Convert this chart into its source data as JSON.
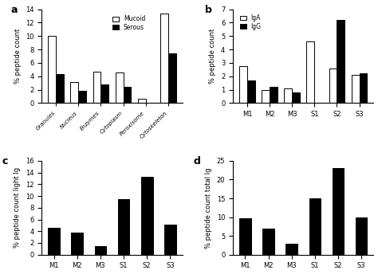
{
  "panel_a": {
    "categories": [
      "Granules",
      "Nucleus",
      "Enzymes",
      "Cytoplasm",
      "Peroxisome",
      "Cytoskeleton"
    ],
    "mucoid": [
      10.0,
      3.1,
      4.7,
      4.6,
      0.65,
      13.3
    ],
    "serous": [
      4.3,
      1.8,
      2.8,
      2.4,
      0.1,
      7.4
    ],
    "ylabel": "% peptide count",
    "ylim": [
      0,
      14
    ],
    "yticks": [
      0,
      2,
      4,
      6,
      8,
      10,
      12,
      14
    ],
    "legend": [
      "Mucoid",
      "Serous"
    ]
  },
  "panel_b": {
    "categories": [
      "M1",
      "M2",
      "M3",
      "S1",
      "S2",
      "S3"
    ],
    "iga": [
      2.75,
      1.0,
      1.1,
      4.6,
      2.6,
      2.1
    ],
    "igg": [
      1.7,
      1.2,
      0.8,
      0.0,
      6.2,
      2.25
    ],
    "ylabel": "% peptide count",
    "ylim": [
      0,
      7
    ],
    "yticks": [
      0,
      1,
      2,
      3,
      4,
      5,
      6,
      7
    ],
    "legend": [
      "IgA",
      "IgG"
    ]
  },
  "panel_c": {
    "categories": [
      "M1",
      "M2",
      "M3",
      "S1",
      "S2",
      "S3"
    ],
    "values": [
      4.6,
      3.8,
      1.4,
      9.5,
      13.3,
      5.1
    ],
    "ylabel": "% peptide count light Ig",
    "ylim": [
      0,
      16
    ],
    "yticks": [
      0,
      2,
      4,
      6,
      8,
      10,
      12,
      14,
      16
    ]
  },
  "panel_d": {
    "categories": [
      "M1",
      "M2",
      "M3",
      "S1",
      "S2",
      "S3"
    ],
    "values": [
      9.8,
      7.0,
      3.0,
      15.0,
      23.0,
      10.0
    ],
    "ylabel": "% peptide count total Ig",
    "ylim": [
      0,
      25
    ],
    "yticks": [
      0,
      5,
      10,
      15,
      20,
      25
    ]
  },
  "bar_width": 0.35,
  "single_bar_width": 0.5
}
